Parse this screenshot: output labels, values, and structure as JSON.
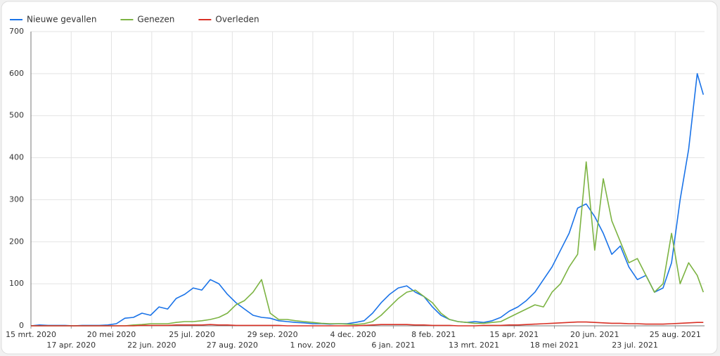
{
  "chart_data": {
    "type": "line",
    "x": [
      "2020-03-15",
      "2020-03-22",
      "2020-03-29",
      "2020-04-05",
      "2020-04-12",
      "2020-04-19",
      "2020-04-26",
      "2020-05-03",
      "2020-05-10",
      "2020-05-17",
      "2020-05-24",
      "2020-05-31",
      "2020-06-07",
      "2020-06-14",
      "2020-06-21",
      "2020-06-28",
      "2020-07-05",
      "2020-07-12",
      "2020-07-19",
      "2020-07-26",
      "2020-08-02",
      "2020-08-09",
      "2020-08-16",
      "2020-08-23",
      "2020-08-30",
      "2020-09-06",
      "2020-09-13",
      "2020-09-20",
      "2020-09-27",
      "2020-10-04",
      "2020-10-11",
      "2020-10-18",
      "2020-10-25",
      "2020-11-01",
      "2020-11-08",
      "2020-11-15",
      "2020-11-22",
      "2020-11-29",
      "2020-12-06",
      "2020-12-13",
      "2020-12-20",
      "2020-12-27",
      "2021-01-03",
      "2021-01-10",
      "2021-01-17",
      "2021-01-24",
      "2021-01-31",
      "2021-02-07",
      "2021-02-14",
      "2021-02-21",
      "2021-02-28",
      "2021-03-07",
      "2021-03-14",
      "2021-03-21",
      "2021-03-28",
      "2021-04-04",
      "2021-04-11",
      "2021-04-18",
      "2021-04-25",
      "2021-05-02",
      "2021-05-09",
      "2021-05-16",
      "2021-05-23",
      "2021-05-30",
      "2021-06-06",
      "2021-06-13",
      "2021-06-20",
      "2021-06-27",
      "2021-07-04",
      "2021-07-11",
      "2021-07-18",
      "2021-07-25",
      "2021-08-01",
      "2021-08-08",
      "2021-08-15",
      "2021-08-22",
      "2021-08-29",
      "2021-09-05",
      "2021-09-12",
      "2021-09-17"
    ],
    "series": [
      {
        "name": "Nieuwe gevallen",
        "color": "#1a73e8",
        "values": [
          0,
          2,
          1,
          1,
          1,
          0,
          1,
          1,
          1,
          2,
          5,
          18,
          20,
          30,
          25,
          45,
          40,
          65,
          75,
          90,
          85,
          110,
          100,
          75,
          55,
          40,
          25,
          20,
          18,
          12,
          10,
          8,
          7,
          5,
          5,
          4,
          5,
          5,
          8,
          12,
          30,
          55,
          75,
          90,
          95,
          80,
          70,
          45,
          25,
          15,
          10,
          8,
          10,
          8,
          12,
          20,
          35,
          45,
          60,
          80,
          110,
          140,
          180,
          220,
          280,
          290,
          260,
          220,
          170,
          190,
          140,
          110,
          120,
          80,
          90,
          150,
          300,
          420,
          600,
          550
        ]
      },
      {
        "name": "Genezen",
        "color": "#7cb342",
        "values": [
          0,
          0,
          0,
          0,
          0,
          0,
          0,
          0,
          0,
          0,
          0,
          0,
          2,
          3,
          5,
          5,
          5,
          8,
          10,
          10,
          12,
          15,
          20,
          30,
          50,
          60,
          80,
          110,
          30,
          15,
          15,
          12,
          10,
          8,
          6,
          5,
          5,
          4,
          3,
          5,
          10,
          25,
          45,
          65,
          80,
          85,
          70,
          55,
          30,
          15,
          10,
          8,
          6,
          6,
          8,
          10,
          20,
          30,
          40,
          50,
          45,
          80,
          100,
          140,
          170,
          390,
          180,
          350,
          250,
          200,
          150,
          160,
          120,
          80,
          100,
          220,
          100,
          150,
          120,
          80
        ]
      },
      {
        "name": "Overleden",
        "color": "#d93025",
        "values": [
          0,
          0,
          0,
          0,
          0,
          0,
          0,
          0,
          0,
          0,
          0,
          0,
          0,
          1,
          1,
          1,
          1,
          2,
          2,
          2,
          2,
          3,
          2,
          2,
          1,
          1,
          1,
          1,
          1,
          1,
          0,
          0,
          0,
          0,
          0,
          0,
          0,
          0,
          0,
          1,
          2,
          3,
          3,
          3,
          3,
          2,
          2,
          1,
          1,
          1,
          0,
          0,
          0,
          1,
          1,
          1,
          2,
          2,
          3,
          4,
          5,
          6,
          7,
          8,
          9,
          9,
          8,
          7,
          6,
          6,
          5,
          5,
          4,
          4,
          4,
          5,
          6,
          7,
          8,
          8
        ]
      }
    ],
    "xlim": [
      "2020-03-15",
      "2021-09-18"
    ],
    "xticks": [
      {
        "value": "2020-03-15",
        "label": "15 mrt. 2020"
      },
      {
        "value": "2020-04-17",
        "label": "17 apr. 2020"
      },
      {
        "value": "2020-05-20",
        "label": "20 mei 2020"
      },
      {
        "value": "2020-06-22",
        "label": "22 jun. 2020"
      },
      {
        "value": "2020-07-25",
        "label": "25 jul. 2020"
      },
      {
        "value": "2020-08-27",
        "label": "27 aug. 2020"
      },
      {
        "value": "2020-09-29",
        "label": "29 sep. 2020"
      },
      {
        "value": "2020-11-01",
        "label": "1 nov. 2020"
      },
      {
        "value": "2020-12-04",
        "label": "4 dec. 2020"
      },
      {
        "value": "2021-01-06",
        "label": "6 jan. 2021"
      },
      {
        "value": "2021-02-08",
        "label": "8 feb. 2021"
      },
      {
        "value": "2021-03-13",
        "label": "13 mrt. 2021"
      },
      {
        "value": "2021-04-15",
        "label": "15 apr. 2021"
      },
      {
        "value": "2021-05-18",
        "label": "18 mei 2021"
      },
      {
        "value": "2021-06-20",
        "label": "20 jun. 2021"
      },
      {
        "value": "2021-07-23",
        "label": "23 jul. 2021"
      },
      {
        "value": "2021-08-25",
        "label": "25 aug. 2021"
      }
    ],
    "ylim": [
      0,
      700
    ],
    "yticks": [
      0,
      100,
      200,
      300,
      400,
      500,
      600,
      700
    ],
    "grid": true
  }
}
